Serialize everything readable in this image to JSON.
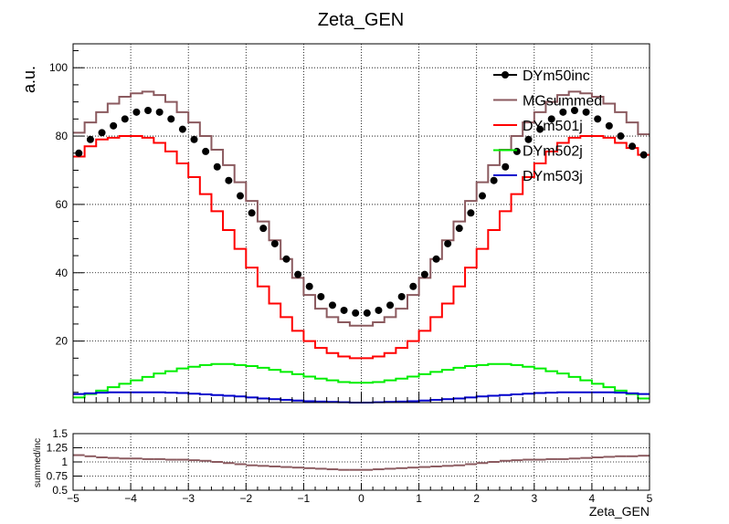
{
  "chart_data": [
    {
      "type": "line",
      "title": "Zeta_GEN",
      "xlabel": "Zeta_GEN",
      "ylabel": "a.u.",
      "xlim": [
        -5,
        5
      ],
      "ylim": [
        2,
        107
      ],
      "grid": true,
      "legend_position": "top-right",
      "x_ticks": [
        "−5",
        "−4",
        "−3",
        "−2",
        "−1",
        "0",
        "1",
        "2",
        "3",
        "4",
        "5"
      ],
      "y_ticks": [
        "20",
        "40",
        "60",
        "80",
        "100"
      ],
      "series": [
        {
          "name": "DYm50inc",
          "style": "markers",
          "color": "#000000",
          "x": [
            -4.9,
            -4.7,
            -4.5,
            -4.3,
            -4.1,
            -3.9,
            -3.7,
            -3.5,
            -3.3,
            -3.1,
            -2.9,
            -2.7,
            -2.5,
            -2.3,
            -2.1,
            -1.9,
            -1.7,
            -1.5,
            -1.3,
            -1.1,
            -0.9,
            -0.7,
            -0.5,
            -0.3,
            -0.1,
            0.1,
            0.3,
            0.5,
            0.7,
            0.9,
            1.1,
            1.3,
            1.5,
            1.7,
            1.9,
            2.1,
            2.3,
            2.5,
            2.7,
            2.9,
            3.1,
            3.3,
            3.5,
            3.7,
            3.9,
            4.1,
            4.3,
            4.5,
            4.7,
            4.9
          ],
          "y": [
            75,
            79,
            81,
            83,
            85,
            87,
            87.5,
            87,
            85,
            82,
            79,
            75.5,
            71,
            67,
            62.5,
            57.5,
            53,
            48.5,
            44,
            39.5,
            36,
            33,
            30.5,
            29,
            28.2,
            28.2,
            29,
            30.5,
            33,
            36,
            39.5,
            44,
            48.5,
            53,
            57.5,
            62.5,
            67,
            71,
            75.5,
            79,
            82,
            85,
            87,
            87.5,
            87,
            85,
            83,
            80,
            77,
            74.5
          ]
        },
        {
          "name": "MGsummed",
          "style": "step",
          "color": "#8B5A5F",
          "x": [
            -4.9,
            -4.7,
            -4.5,
            -4.3,
            -4.1,
            -3.9,
            -3.7,
            -3.5,
            -3.3,
            -3.1,
            -2.9,
            -2.7,
            -2.5,
            -2.3,
            -2.1,
            -1.9,
            -1.7,
            -1.5,
            -1.3,
            -1.1,
            -0.9,
            -0.7,
            -0.5,
            -0.3,
            -0.1,
            0.1,
            0.3,
            0.5,
            0.7,
            0.9,
            1.1,
            1.3,
            1.5,
            1.7,
            1.9,
            2.1,
            2.3,
            2.5,
            2.7,
            2.9,
            3.1,
            3.3,
            3.5,
            3.7,
            3.9,
            4.1,
            4.3,
            4.5,
            4.7,
            4.9
          ],
          "y": [
            81,
            84,
            87,
            89.5,
            91.5,
            92.5,
            93,
            92,
            90,
            87,
            84,
            80,
            76,
            71.5,
            66.5,
            61,
            55,
            49.5,
            44,
            38.5,
            33.5,
            29.5,
            27,
            25.5,
            24.5,
            24.5,
            25.5,
            27,
            29.5,
            33.5,
            38.5,
            44,
            49.5,
            55,
            61,
            66.5,
            71.5,
            76,
            80,
            84,
            87,
            90,
            92,
            93,
            92.5,
            91.5,
            89.5,
            87,
            84,
            80.5
          ]
        },
        {
          "name": "DYm501j",
          "style": "step",
          "color": "#FF0000",
          "x": [
            -4.9,
            -4.7,
            -4.5,
            -4.3,
            -4.1,
            -3.9,
            -3.7,
            -3.5,
            -3.3,
            -3.1,
            -2.9,
            -2.7,
            -2.5,
            -2.3,
            -2.1,
            -1.9,
            -1.7,
            -1.5,
            -1.3,
            -1.1,
            -0.9,
            -0.7,
            -0.5,
            -0.3,
            -0.1,
            0.1,
            0.3,
            0.5,
            0.7,
            0.9,
            1.1,
            1.3,
            1.5,
            1.7,
            1.9,
            2.1,
            2.3,
            2.5,
            2.7,
            2.9,
            3.1,
            3.3,
            3.5,
            3.7,
            3.9,
            4.1,
            4.3,
            4.5,
            4.7,
            4.9
          ],
          "y": [
            74,
            77,
            79,
            79.5,
            80,
            80,
            79.5,
            78,
            75.5,
            72,
            68,
            63,
            58,
            52.5,
            47,
            41.5,
            36,
            31,
            27,
            23,
            20,
            18,
            16.5,
            15.5,
            15,
            15,
            15.5,
            16.5,
            18,
            20,
            23,
            27,
            31,
            36,
            41.5,
            47,
            52.5,
            58,
            63,
            68,
            72,
            75.5,
            78,
            79.5,
            80,
            80,
            79.5,
            78,
            76.5,
            74.5
          ]
        },
        {
          "name": "DYm502j",
          "style": "step",
          "color": "#00EE00",
          "x": [
            -4.9,
            -4.7,
            -4.5,
            -4.3,
            -4.1,
            -3.9,
            -3.7,
            -3.5,
            -3.3,
            -3.1,
            -2.9,
            -2.7,
            -2.5,
            -2.3,
            -2.1,
            -1.9,
            -1.7,
            -1.5,
            -1.3,
            -1.1,
            -0.9,
            -0.7,
            -0.5,
            -0.3,
            -0.1,
            0.1,
            0.3,
            0.5,
            0.7,
            0.9,
            1.1,
            1.3,
            1.5,
            1.7,
            1.9,
            2.1,
            2.3,
            2.5,
            2.7,
            2.9,
            3.1,
            3.3,
            3.5,
            3.7,
            3.9,
            4.1,
            4.3,
            4.5,
            4.7,
            4.9
          ],
          "y": [
            3.5,
            4.5,
            5.5,
            6.5,
            7.5,
            8.5,
            9.5,
            10.5,
            11.2,
            12,
            12.5,
            13,
            13.3,
            13.3,
            13,
            12.7,
            12.2,
            11.6,
            11,
            10.3,
            9.6,
            9,
            8.5,
            8,
            7.8,
            7.8,
            8,
            8.5,
            9,
            9.6,
            10.3,
            11,
            11.6,
            12.2,
            12.7,
            13,
            13.3,
            13.3,
            13,
            12.5,
            12,
            11.2,
            10.5,
            9.5,
            8.5,
            7.5,
            6.5,
            5.5,
            4.5,
            3.2
          ]
        },
        {
          "name": "DYm503j",
          "style": "step",
          "color": "#0000CC",
          "x": [
            -4.9,
            -4.7,
            -4.5,
            -4.3,
            -4.1,
            -3.9,
            -3.7,
            -3.5,
            -3.3,
            -3.1,
            -2.9,
            -2.7,
            -2.5,
            -2.3,
            -2.1,
            -1.9,
            -1.7,
            -1.5,
            -1.3,
            -1.1,
            -0.9,
            -0.7,
            -0.5,
            -0.3,
            -0.1,
            0.1,
            0.3,
            0.5,
            0.7,
            0.9,
            1.1,
            1.3,
            1.5,
            1.7,
            1.9,
            2.1,
            2.3,
            2.5,
            2.7,
            2.9,
            3.1,
            3.3,
            3.5,
            3.7,
            3.9,
            4.1,
            4.3,
            4.5,
            4.7,
            4.9
          ],
          "y": [
            4.5,
            4.7,
            4.9,
            5,
            5,
            5,
            5,
            5,
            4.9,
            4.8,
            4.6,
            4.4,
            4.2,
            4,
            3.8,
            3.5,
            3.2,
            3,
            2.8,
            2.6,
            2.4,
            2.3,
            2.2,
            2.1,
            2,
            2,
            2.1,
            2.2,
            2.3,
            2.4,
            2.6,
            2.8,
            3,
            3.2,
            3.5,
            3.8,
            4,
            4.2,
            4.4,
            4.6,
            4.8,
            4.9,
            5,
            5,
            5,
            5,
            5,
            4.9,
            4.7,
            4.5
          ]
        }
      ]
    },
    {
      "type": "line",
      "title": "",
      "xlabel": "Zeta_GEN",
      "ylabel": "summed/inc",
      "xlim": [
        -5,
        5
      ],
      "ylim": [
        0.5,
        1.5
      ],
      "grid": true,
      "x_ticks": [
        "−5",
        "−4",
        "−3",
        "−2",
        "−1",
        "0",
        "1",
        "2",
        "3",
        "4",
        "5"
      ],
      "y_ticks": [
        "0.5",
        "0.75",
        "1",
        "1.25",
        "1.5"
      ],
      "series": [
        {
          "name": "",
          "style": "points",
          "color": "#8B5A5F",
          "x": [
            -4.9,
            -4.7,
            -4.5,
            -4.3,
            -4.1,
            -3.9,
            -3.7,
            -3.5,
            -3.3,
            -3.1,
            -2.9,
            -2.7,
            -2.5,
            -2.3,
            -2.1,
            -1.9,
            -1.7,
            -1.5,
            -1.3,
            -1.1,
            -0.9,
            -0.7,
            -0.5,
            -0.3,
            -0.1,
            0.1,
            0.3,
            0.5,
            0.7,
            0.9,
            1.1,
            1.3,
            1.5,
            1.7,
            1.9,
            2.1,
            2.3,
            2.5,
            2.7,
            2.9,
            3.1,
            3.3,
            3.5,
            3.7,
            3.9,
            4.1,
            4.3,
            4.5,
            4.7,
            4.9
          ],
          "y": [
            1.12,
            1.1,
            1.08,
            1.07,
            1.06,
            1.06,
            1.05,
            1.05,
            1.04,
            1.04,
            1.03,
            1.02,
            1.0,
            0.98,
            0.96,
            0.94,
            0.93,
            0.92,
            0.91,
            0.9,
            0.89,
            0.88,
            0.87,
            0.86,
            0.86,
            0.86,
            0.87,
            0.88,
            0.89,
            0.9,
            0.91,
            0.92,
            0.93,
            0.94,
            0.96,
            0.98,
            1.0,
            1.02,
            1.03,
            1.04,
            1.04,
            1.05,
            1.05,
            1.06,
            1.07,
            1.08,
            1.09,
            1.1,
            1.1,
            1.11
          ]
        }
      ]
    }
  ],
  "legend": [
    {
      "label": "DYm50inc",
      "symbol": "marker",
      "color": "#000000"
    },
    {
      "label": "MGsummed",
      "symbol": "line",
      "color": "#8B5A5F"
    },
    {
      "label": "DYm501j",
      "symbol": "line",
      "color": "#FF0000"
    },
    {
      "label": "DYm502j",
      "symbol": "line",
      "color": "#00EE00"
    },
    {
      "label": "DYm503j",
      "symbol": "line",
      "color": "#0000CC"
    }
  ]
}
